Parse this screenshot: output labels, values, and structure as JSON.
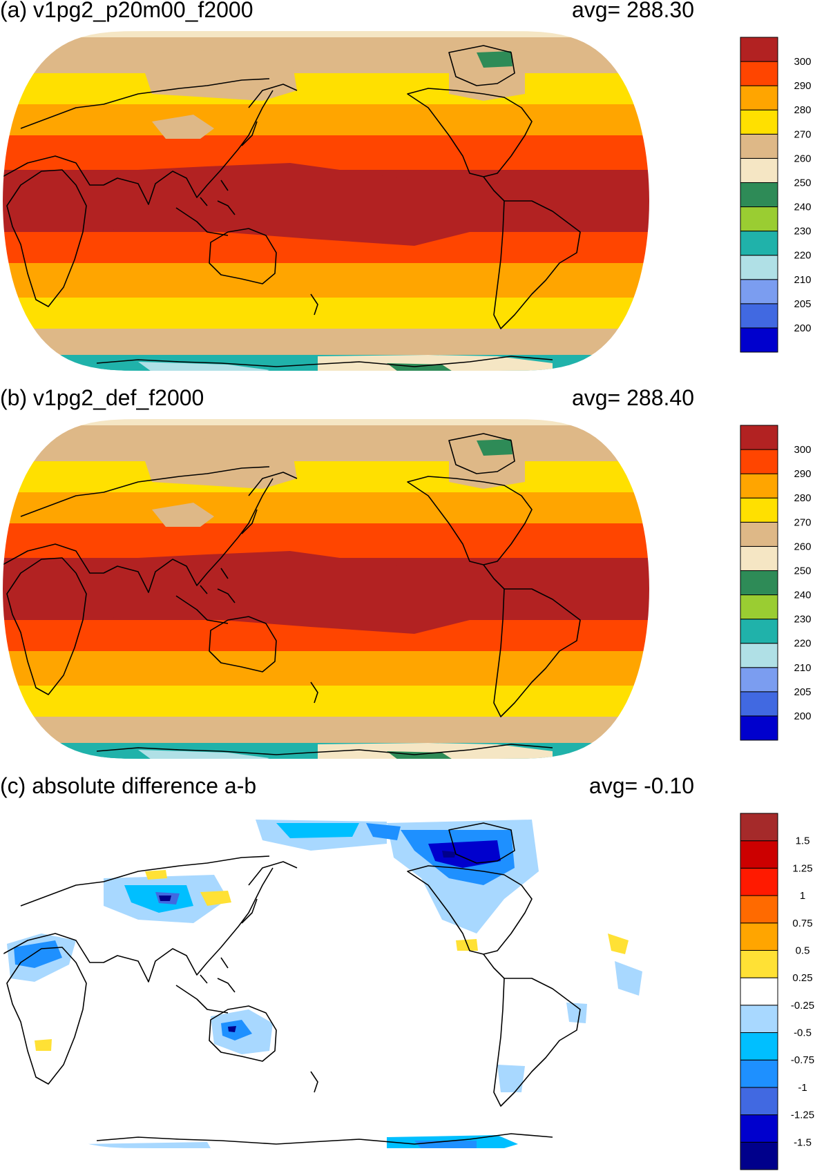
{
  "colors": {
    "temp_palette": [
      "#0000cd",
      "#4169e1",
      "#7b9df0",
      "#b0e0e6",
      "#20b2aa",
      "#9acd32",
      "#2e8b57",
      "#f5e6c4",
      "#deb887",
      "#ffe000",
      "#ffa500",
      "#ff4500",
      "#b22222"
    ],
    "diff_palette": [
      "#00008b",
      "#0000cd",
      "#4169e1",
      "#1e90ff",
      "#00bfff",
      "#a8d8ff",
      "#ffffff",
      "#ffe135",
      "#ffa500",
      "#ff6a00",
      "#ff1a00",
      "#cc0000",
      "#a52a2a"
    ],
    "coastline": "#000000"
  },
  "panels": [
    {
      "id": "a",
      "title": "(a) v1pg2_p20m00_f2000",
      "avg_label": "avg=  288.30",
      "colorbar_labels": [
        "200",
        "205",
        "210",
        "220",
        "230",
        "240",
        "250",
        "260",
        "270",
        "280",
        "290",
        "300"
      ]
    },
    {
      "id": "b",
      "title": "(b) v1pg2_def_f2000",
      "avg_label": "avg=  288.40",
      "colorbar_labels": [
        "200",
        "205",
        "210",
        "220",
        "230",
        "240",
        "250",
        "260",
        "270",
        "280",
        "290",
        "300"
      ]
    },
    {
      "id": "c",
      "title": "(c) absolute difference a-b",
      "avg_label": "avg=   -0.10",
      "colorbar_labels": [
        "-1.5",
        "-1.25",
        "-1",
        "-0.75",
        "-0.5",
        "-0.25",
        "0.25",
        "0.5",
        "0.75",
        "1",
        "1.25",
        "1.5"
      ]
    }
  ]
}
